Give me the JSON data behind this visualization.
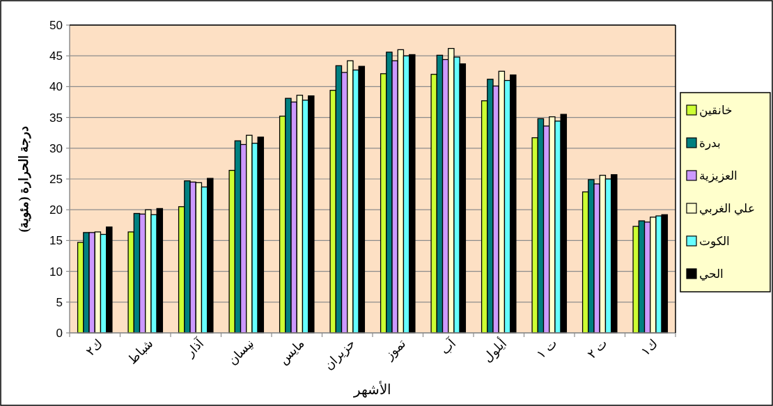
{
  "chart_data": {
    "type": "bar",
    "xlabel": "الأشهر",
    "ylabel": "درجة الحرارة (مئوية)",
    "categories": [
      "ك٢",
      "شباط",
      "آذار",
      "نيسان",
      "مايس",
      "حزيران",
      "تموز",
      "آب",
      "أيلول",
      "ت ١",
      "ت ٢",
      "ك١"
    ],
    "ylim": [
      0,
      50
    ],
    "yticks": [
      0,
      5,
      10,
      15,
      20,
      25,
      30,
      35,
      40,
      45,
      50
    ],
    "grid": "y",
    "legend": "right",
    "series": [
      {
        "name": "خانقين",
        "color": "#ccff33",
        "values": [
          14.7,
          16.4,
          20.5,
          26.4,
          35.2,
          39.4,
          42.1,
          42.0,
          37.7,
          31.7,
          22.9,
          17.3
        ]
      },
      {
        "name": "بدرة",
        "color": "#008080",
        "values": [
          16.3,
          19.4,
          24.7,
          31.2,
          38.1,
          43.4,
          45.6,
          45.1,
          41.2,
          34.8,
          24.9,
          18.2
        ]
      },
      {
        "name": "العزيزية",
        "color": "#cc99ff",
        "values": [
          16.3,
          19.3,
          24.5,
          30.6,
          37.5,
          42.3,
          44.2,
          44.4,
          40.1,
          33.6,
          24.2,
          18.0
        ]
      },
      {
        "name": "علي الغربي",
        "color": "#ffffcc",
        "values": [
          16.4,
          20.0,
          24.4,
          32.1,
          38.6,
          44.2,
          46.0,
          46.2,
          42.5,
          35.1,
          25.6,
          18.8
        ]
      },
      {
        "name": "الكوت",
        "color": "#66ffff",
        "values": [
          16.0,
          19.2,
          23.7,
          30.8,
          37.8,
          42.7,
          45.0,
          44.8,
          41.0,
          34.4,
          25.0,
          19.0
        ]
      },
      {
        "name": "الحي",
        "color": "#000000",
        "values": [
          17.2,
          20.2,
          25.1,
          31.8,
          38.5,
          43.3,
          45.2,
          43.7,
          41.9,
          35.5,
          25.7,
          19.2
        ]
      }
    ]
  }
}
